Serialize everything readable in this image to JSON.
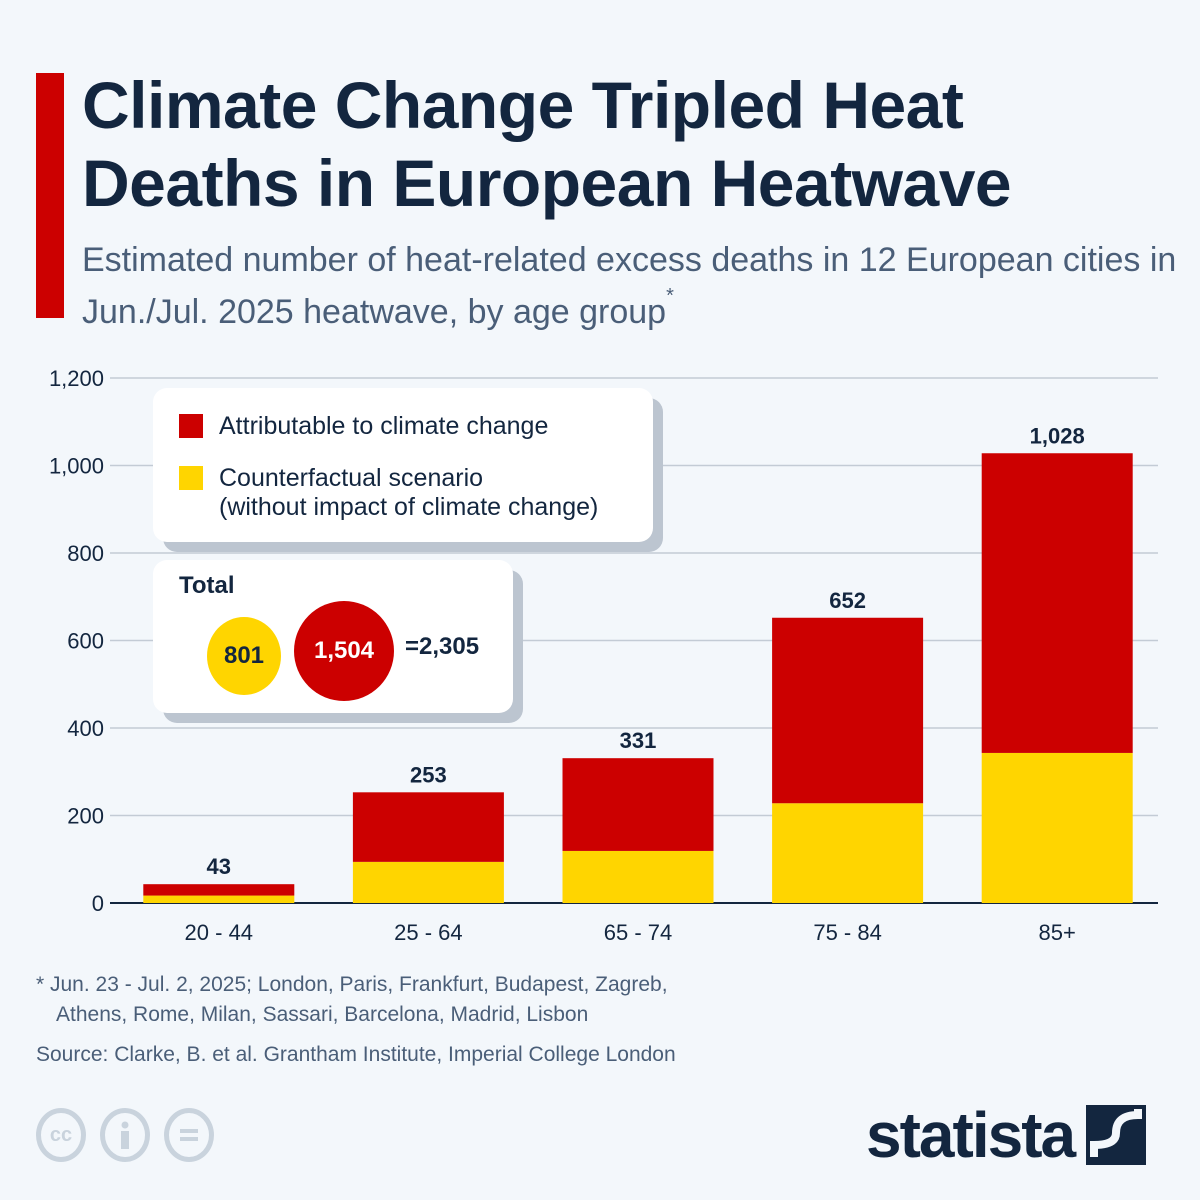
{
  "header": {
    "title": "Climate Change Tripled Heat Deaths in European Heatwave",
    "subtitle": "Estimated number of heat-related excess deaths in 12 European cities in Jun./Jul. 2025 heatwave, by age group",
    "subtitle_marker": "*",
    "accent_color": "#cc0000"
  },
  "legend": {
    "items": [
      {
        "label": "Attributable to climate change",
        "color": "#cc0000"
      },
      {
        "label": "Counterfactual scenario",
        "label_line2": "(without impact of climate change)",
        "color": "#ffd500"
      }
    ]
  },
  "totals": {
    "label": "Total",
    "counterfactual": "801",
    "climate": "1,504",
    "sum": "=2,305"
  },
  "chart_data": {
    "type": "bar",
    "stacked": true,
    "title": "Climate Change Tripled Heat Deaths in European Heatwave",
    "xlabel": "",
    "ylabel": "",
    "categories": [
      "20-44",
      "25-64",
      "65-74",
      "75-84",
      "85+"
    ],
    "series": [
      {
        "name": "Counterfactual scenario (without impact of climate change)",
        "color": "#ffd500",
        "values": [
          17,
          94,
          119,
          228,
          343
        ]
      },
      {
        "name": "Attributable to climate change",
        "color": "#cc0000",
        "values": [
          26,
          159,
          212,
          424,
          685
        ]
      }
    ],
    "totals": [
      43,
      253,
      331,
      652,
      1028
    ],
    "total_labels": [
      "43",
      "253",
      "331",
      "652",
      "1,028"
    ],
    "ylim": [
      0,
      1200
    ],
    "yticks": [
      0,
      200,
      400,
      600,
      800,
      1000,
      1200
    ],
    "ytick_labels": [
      "0",
      "200",
      "400",
      "600",
      "800",
      "1,000",
      "1,200"
    ],
    "grid": true,
    "legend_position": "top-left"
  },
  "footer": {
    "footnote_line1": "* Jun. 23 - Jul. 2, 2025; London, Paris, Frankfurt, Budapest, Zagreb,",
    "footnote_line2": "Athens, Rome, Milan, Sassari, Barcelona, Madrid, Lisbon",
    "source": "Source: Clarke, B. et al. Grantham Institute, Imperial College London",
    "license_icons": [
      "cc-icon",
      "attribution-icon",
      "no-derivatives-icon"
    ],
    "cc_text": "cc",
    "logo_text": "statista"
  }
}
